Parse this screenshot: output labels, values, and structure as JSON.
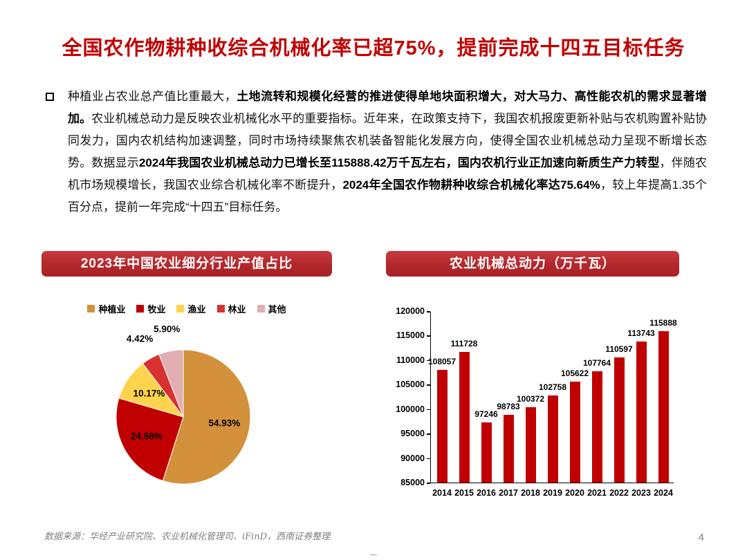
{
  "slide": {
    "title": "全国农作物耕种收综合机械化率已超75%，提前完成十四五目标任务",
    "footer_source": "数据来源：华经产业研究院、农业机械化管理司、iFinD，西南证券整理",
    "page_number": "4",
    "accent_color": "#C00000"
  },
  "paragraph": {
    "segments": [
      {
        "text": "种植业占农业总产值比重最大，",
        "bold": false
      },
      {
        "text": "土地流转和规模化经营的推进使得单地块面积增大，对大马力、高性能农机的需求显著增加。",
        "bold": true
      },
      {
        "text": "农业机械总动力是反映农业机械化水平的重要指标。近年来，在政策支持下，我国农机报废更新补贴与农机购置补贴协同发力，国内农机结构加速调整，同时市场持续聚焦农机装备智能化发展方向，使得全国农业机械总动力呈现不断增长态势。数据显示",
        "bold": false
      },
      {
        "text": "2024年我国农业机械总动力已增长至115888.42万千瓦左右，国内农机行业正加速向新质生产力转型",
        "bold": true
      },
      {
        "text": "，伴随农机市场规模增长，我国农业综合机械化率不断提升，",
        "bold": false
      },
      {
        "text": "2024年全国农作物耕种收综合机械化率达75.64%",
        "bold": true
      },
      {
        "text": "，较上年提高1.35个百分点，提前一年完成“十四五”目标任务。",
        "bold": false
      }
    ]
  },
  "chart_data": [
    {
      "type": "pie",
      "title": "2023年中国农业细分行业产值占比",
      "legend_position": "top",
      "label_format": "percent",
      "slices": [
        {
          "label": "种植业",
          "value": 54.93,
          "color": "#D2913A"
        },
        {
          "label": "牧业",
          "value": 24.58,
          "color": "#C00000"
        },
        {
          "label": "渔业",
          "value": 10.17,
          "color": "#FFD34D"
        },
        {
          "label": "林业",
          "value": 4.42,
          "color": "#D93030"
        },
        {
          "label": "其他",
          "value": 5.9,
          "color": "#E2AEB2"
        }
      ]
    },
    {
      "type": "bar",
      "title": "农业机械总动力（万千瓦）",
      "categories": [
        "2014",
        "2015",
        "2016",
        "2017",
        "2018",
        "2019",
        "2020",
        "2021",
        "2022",
        "2023",
        "2024"
      ],
      "values": [
        108057,
        111728,
        97246,
        98783,
        100372,
        102758,
        105622,
        107764,
        110597,
        113743,
        115888
      ],
      "ylim": [
        85000,
        120000
      ],
      "ytick_step": 5000,
      "bar_color": "#C00000",
      "grid": false,
      "xlabel": "",
      "ylabel": ""
    }
  ]
}
